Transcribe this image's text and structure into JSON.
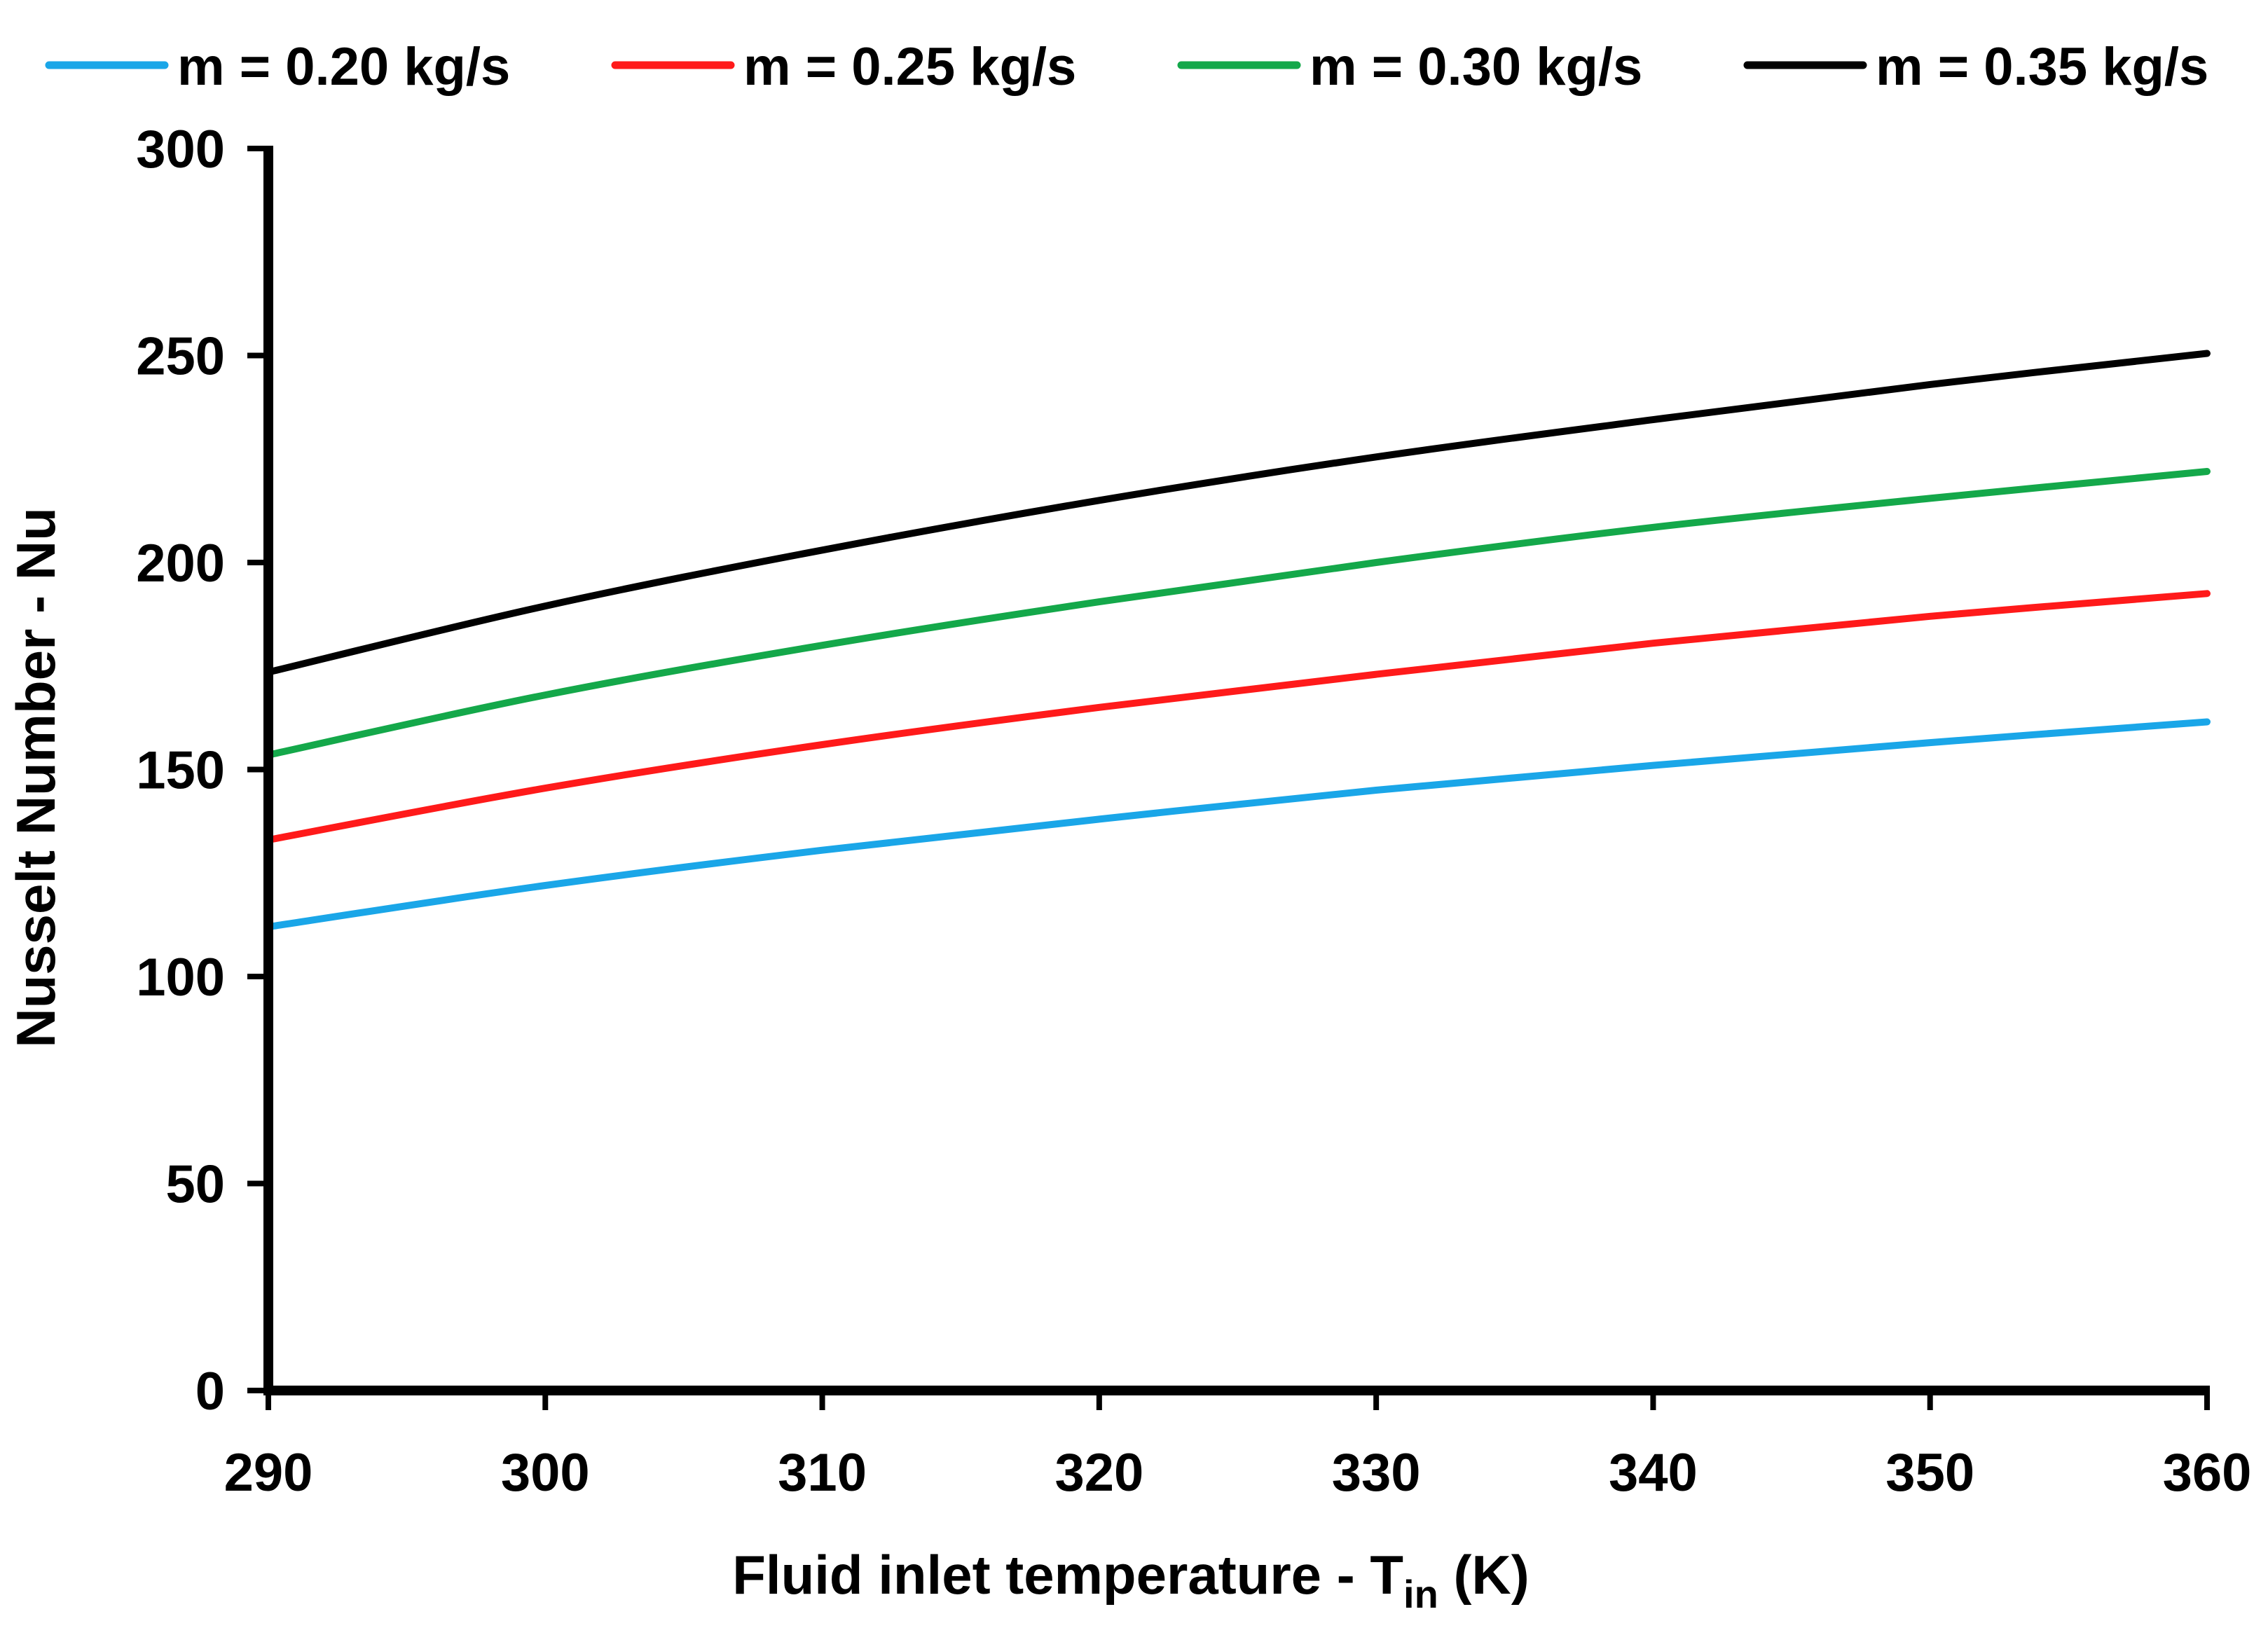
{
  "chart_data": {
    "type": "line",
    "title": "",
    "xlabel": {
      "prefix": "Fluid inlet temperature - T",
      "subscript": "in",
      "suffix": " (K)"
    },
    "ylabel": "Nusselt Number - Nu",
    "xlim": [
      290,
      360
    ],
    "ylim": [
      0,
      300
    ],
    "xticks": [
      290,
      300,
      310,
      320,
      330,
      340,
      350,
      360
    ],
    "yticks": [
      0,
      50,
      100,
      150,
      200,
      250,
      300
    ],
    "grid": false,
    "legend_position": "top",
    "x": [
      290,
      300,
      310,
      320,
      330,
      340,
      350,
      360
    ],
    "series": [
      {
        "name": "m = 0.20 kg/s",
        "color": "#1aa6e8",
        "values": [
          112,
          122,
          130.5,
          138,
          145,
          151,
          156.5,
          161.5
        ]
      },
      {
        "name": "m = 0.25 kg/s",
        "color": "#ff1a1a",
        "values": [
          133,
          145.5,
          156,
          165,
          173,
          180.5,
          187,
          192.5
        ]
      },
      {
        "name": "m = 0.30 kg/s",
        "color": "#14a84a",
        "values": [
          153.5,
          168,
          180,
          190.5,
          200,
          208.5,
          215.5,
          222
        ]
      },
      {
        "name": "m = 0.35 kg/s",
        "color": "#000000",
        "values": [
          173.5,
          189.5,
          203,
          215,
          225.5,
          234.5,
          243,
          250.5
        ]
      }
    ]
  }
}
